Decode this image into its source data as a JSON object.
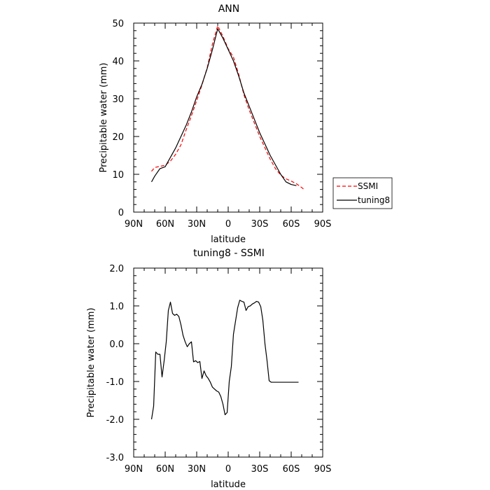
{
  "chart_data": [
    {
      "type": "line",
      "title": "ANN",
      "xlabel": "latitude",
      "ylabel": "Precipitable water (mm)",
      "xlim": [
        90,
        -90
      ],
      "ylim": [
        0,
        50
      ],
      "x_ticks": [
        90,
        60,
        30,
        0,
        -30,
        -60,
        -90
      ],
      "x_tick_labels": [
        "90N",
        "60N",
        "30N",
        "0",
        "30S",
        "60S",
        "90S"
      ],
      "y_ticks": [
        0,
        10,
        20,
        30,
        40,
        50
      ],
      "y_tick_labels": [
        "0",
        "10",
        "20",
        "30",
        "40",
        "50"
      ],
      "legend": {
        "placement": "outside-right",
        "entries": [
          "SSMI",
          "tuning8"
        ]
      },
      "series": [
        {
          "name": "SSMI",
          "color": "#ff0000",
          "dash": "dashed",
          "x": [
            73,
            70,
            65,
            60,
            55,
            50,
            45,
            40,
            35,
            30,
            25,
            20,
            15,
            10,
            5,
            0,
            -5,
            -10,
            -15,
            -20,
            -25,
            -30,
            -35,
            -40,
            -45,
            -50,
            -55,
            -60,
            -65,
            -70,
            -73
          ],
          "y": [
            10.8,
            11.8,
            12.1,
            12.4,
            13.5,
            15.3,
            17.8,
            21.8,
            25.5,
            29.5,
            33.6,
            38.2,
            44.5,
            49.3,
            46.5,
            43.2,
            41.0,
            36.5,
            31.0,
            27.0,
            23.5,
            20.0,
            17.0,
            14.0,
            11.5,
            9.8,
            8.8,
            8.2,
            7.5,
            6.5,
            5.8
          ]
        },
        {
          "name": "tuning8",
          "color": "#000000",
          "dash": "solid",
          "x": [
            73,
            70,
            65,
            60,
            55,
            50,
            45,
            40,
            35,
            30,
            25,
            20,
            15,
            10,
            5,
            0,
            -5,
            -10,
            -15,
            -20,
            -25,
            -30,
            -35,
            -40,
            -45,
            -50,
            -55,
            -60,
            -65
          ],
          "y": [
            8.0,
            9.5,
            11.5,
            12.0,
            14.5,
            17.0,
            20.0,
            23.0,
            26.5,
            30.5,
            33.8,
            38.0,
            43.0,
            48.5,
            46.0,
            43.0,
            40.0,
            36.0,
            31.5,
            28.0,
            24.5,
            21.0,
            18.0,
            15.0,
            12.5,
            10.0,
            8.0,
            7.3,
            7.0
          ]
        }
      ]
    },
    {
      "type": "line",
      "title": "tuning8 - SSMI",
      "xlabel": "latitude",
      "ylabel": "Precipitable water (mm)",
      "xlim": [
        90,
        -90
      ],
      "ylim": [
        -3.0,
        2.0
      ],
      "x_ticks": [
        90,
        60,
        30,
        0,
        -30,
        -60,
        -90
      ],
      "x_tick_labels": [
        "90N",
        "60N",
        "30N",
        "0",
        "30S",
        "60S",
        "90S"
      ],
      "y_ticks": [
        -3.0,
        -2.0,
        -1.0,
        0.0,
        1.0,
        2.0
      ],
      "y_tick_labels": [
        "-3.0",
        "-2.0",
        "-1.0",
        "0.0",
        "1.0",
        "2.0"
      ],
      "series": [
        {
          "color": "#000000",
          "dash": "solid",
          "x": [
            73,
            71,
            69,
            67,
            65,
            63,
            61,
            59,
            57,
            55,
            53,
            51,
            49,
            47,
            45,
            43,
            41,
            39,
            37,
            35,
            33,
            31,
            29,
            27,
            25,
            23,
            21,
            19,
            17,
            15,
            13,
            11,
            9,
            7,
            5,
            3,
            1,
            -1,
            -3,
            -5,
            -7,
            -9,
            -11,
            -13,
            -15,
            -17,
            -19,
            -21,
            -23,
            -25,
            -27,
            -29,
            -31,
            -33,
            -35,
            -37,
            -39,
            -41,
            -43,
            -45,
            -47,
            -49,
            -51,
            -53,
            -55,
            -57,
            -59,
            -61,
            -63,
            -65,
            -67
          ],
          "y": [
            -2.0,
            -1.65,
            -0.22,
            -0.28,
            -0.28,
            -0.88,
            -0.45,
            0.05,
            0.88,
            1.1,
            0.8,
            0.75,
            0.78,
            0.72,
            0.5,
            0.22,
            0.05,
            -0.08,
            0.0,
            0.05,
            -0.48,
            -0.45,
            -0.5,
            -0.47,
            -0.92,
            -0.72,
            -0.85,
            -0.92,
            -1.02,
            -1.15,
            -1.2,
            -1.25,
            -1.28,
            -1.4,
            -1.6,
            -1.88,
            -1.82,
            -1.0,
            -0.6,
            0.25,
            0.6,
            0.95,
            1.15,
            1.12,
            1.1,
            0.88,
            0.98,
            1.0,
            1.05,
            1.08,
            1.12,
            1.1,
            0.98,
            0.62,
            0.0,
            -0.45,
            -0.98,
            -1.02,
            -1.02,
            -1.02,
            -1.02,
            -1.02,
            -1.02,
            -1.02,
            -1.02,
            -1.02,
            -1.02,
            -1.02,
            -1.02,
            -1.02,
            -1.02
          ]
        }
      ]
    }
  ]
}
